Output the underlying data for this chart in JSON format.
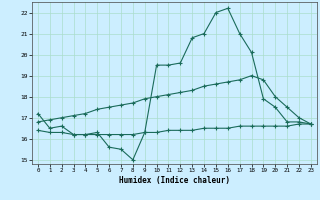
{
  "title": "",
  "xlabel": "Humidex (Indice chaleur)",
  "bg_color": "#cceeff",
  "grid_color": "#aaddcc",
  "line_color": "#1a6b5a",
  "xlim": [
    -0.5,
    23.5
  ],
  "ylim": [
    14.8,
    22.5
  ],
  "yticks": [
    15,
    16,
    17,
    18,
    19,
    20,
    21,
    22
  ],
  "xticks": [
    0,
    1,
    2,
    3,
    4,
    5,
    6,
    7,
    8,
    9,
    10,
    11,
    12,
    13,
    14,
    15,
    16,
    17,
    18,
    19,
    20,
    21,
    22,
    23
  ],
  "line1_x": [
    0,
    1,
    2,
    3,
    4,
    5,
    6,
    7,
    8,
    9,
    10,
    11,
    12,
    13,
    14,
    15,
    16,
    17,
    18,
    19,
    20,
    21,
    22,
    23
  ],
  "line1_y": [
    17.2,
    16.5,
    16.6,
    16.2,
    16.2,
    16.3,
    15.6,
    15.5,
    15.0,
    16.3,
    19.5,
    19.5,
    19.6,
    20.8,
    21.0,
    22.0,
    22.2,
    21.0,
    20.1,
    17.9,
    17.5,
    16.8,
    16.8,
    16.7
  ],
  "line2_x": [
    0,
    1,
    2,
    3,
    4,
    5,
    6,
    7,
    8,
    9,
    10,
    11,
    12,
    13,
    14,
    15,
    16,
    17,
    18,
    19,
    20,
    21,
    22,
    23
  ],
  "line2_y": [
    16.8,
    16.9,
    17.0,
    17.1,
    17.2,
    17.4,
    17.5,
    17.6,
    17.7,
    17.9,
    18.0,
    18.1,
    18.2,
    18.3,
    18.5,
    18.6,
    18.7,
    18.8,
    19.0,
    18.8,
    18.0,
    17.5,
    17.0,
    16.7
  ],
  "line3_x": [
    0,
    1,
    2,
    3,
    4,
    5,
    6,
    7,
    8,
    9,
    10,
    11,
    12,
    13,
    14,
    15,
    16,
    17,
    18,
    19,
    20,
    21,
    22,
    23
  ],
  "line3_y": [
    16.4,
    16.3,
    16.3,
    16.2,
    16.2,
    16.2,
    16.2,
    16.2,
    16.2,
    16.3,
    16.3,
    16.4,
    16.4,
    16.4,
    16.5,
    16.5,
    16.5,
    16.6,
    16.6,
    16.6,
    16.6,
    16.6,
    16.7,
    16.7
  ]
}
